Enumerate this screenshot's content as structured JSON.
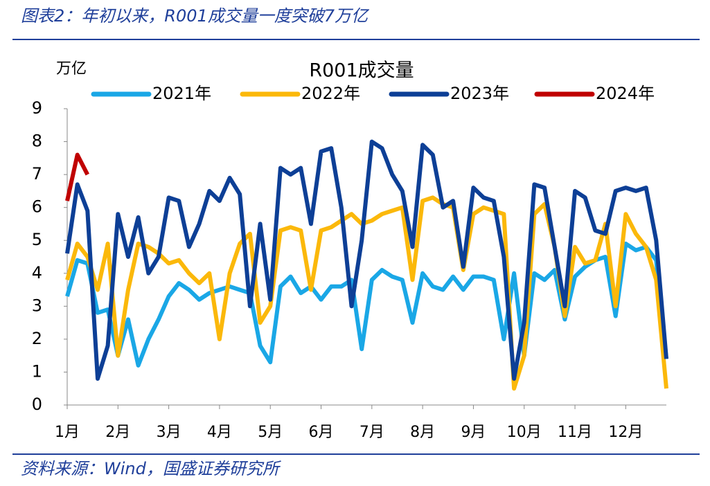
{
  "header": {
    "title": "图表2：年初以来，R001成交量一度突破7万亿"
  },
  "footer": {
    "source": "资料来源：Wind，国盛证券研究所"
  },
  "chart_data": {
    "type": "line",
    "title": "R001成交量",
    "y_label": "万亿",
    "categories": [
      "1月",
      null,
      null,
      null,
      null,
      "2月",
      null,
      null,
      null,
      null,
      "3月",
      null,
      null,
      null,
      null,
      "4月",
      null,
      null,
      null,
      null,
      "5月",
      null,
      null,
      null,
      null,
      "6月",
      null,
      null,
      null,
      null,
      "7月",
      null,
      null,
      null,
      null,
      "8月",
      null,
      null,
      null,
      null,
      "9月",
      null,
      null,
      null,
      null,
      "10月",
      null,
      null,
      null,
      null,
      "11月",
      null,
      null,
      null,
      null,
      "12月",
      null,
      null,
      null,
      null
    ],
    "ylim": [
      0,
      9
    ],
    "yticks": [
      0,
      1,
      2,
      3,
      4,
      5,
      6,
      7,
      8,
      9
    ],
    "grid": false,
    "legend": "top",
    "series": [
      {
        "name": "2021年",
        "color": "#1aa7e6",
        "values": [
          3.3,
          4.4,
          4.3,
          2.8,
          2.9,
          1.5,
          2.6,
          1.2,
          2.0,
          2.6,
          3.3,
          3.7,
          3.5,
          3.2,
          3.4,
          3.5,
          3.6,
          3.5,
          3.4,
          1.8,
          1.3,
          3.6,
          3.9,
          3.4,
          3.6,
          3.2,
          3.6,
          3.6,
          3.8,
          1.7,
          3.8,
          4.1,
          3.9,
          3.8,
          2.5,
          4.0,
          3.6,
          3.5,
          3.9,
          3.5,
          3.9,
          3.9,
          3.8,
          2.0,
          4.0,
          1.5,
          4.0,
          3.8,
          4.1,
          2.6,
          3.9,
          4.2,
          4.4,
          4.5,
          2.7,
          4.9,
          4.7,
          4.8,
          4.4,
          1.4
        ]
      },
      {
        "name": "2022年",
        "color": "#fbb80a",
        "values": [
          3.8,
          4.9,
          4.5,
          3.5,
          4.9,
          1.5,
          3.5,
          4.9,
          4.8,
          4.6,
          4.3,
          4.4,
          4.0,
          3.7,
          4.0,
          2.0,
          4.0,
          4.9,
          5.2,
          2.5,
          3.0,
          5.3,
          5.4,
          5.3,
          3.5,
          5.3,
          5.4,
          5.6,
          5.8,
          5.5,
          5.6,
          5.8,
          5.9,
          6.0,
          3.8,
          6.2,
          6.3,
          6.1,
          6.0,
          4.1,
          5.8,
          6.0,
          5.9,
          5.8,
          0.5,
          1.5,
          5.8,
          6.1,
          4.8,
          2.7,
          4.8,
          4.3,
          4.4,
          5.5,
          3.0,
          5.8,
          5.2,
          4.8,
          3.8,
          0.5
        ]
      },
      {
        "name": "2023年",
        "color": "#0d3f96",
        "values": [
          4.6,
          6.7,
          5.9,
          0.8,
          1.8,
          5.8,
          4.5,
          5.7,
          4.0,
          4.5,
          6.3,
          6.2,
          4.8,
          5.5,
          6.5,
          6.2,
          6.9,
          6.4,
          3.0,
          5.5,
          3.2,
          7.2,
          7.0,
          7.2,
          5.5,
          7.7,
          7.8,
          6.0,
          3.0,
          5.0,
          8.0,
          7.8,
          7.0,
          6.5,
          4.8,
          7.9,
          7.6,
          6.0,
          6.2,
          4.2,
          6.6,
          6.3,
          6.2,
          4.5,
          0.8,
          2.5,
          6.7,
          6.6,
          4.8,
          3.0,
          6.5,
          6.3,
          5.3,
          5.2,
          6.5,
          6.6,
          6.5,
          6.6,
          5.0,
          1.4
        ]
      },
      {
        "name": "2024年",
        "color": "#c00000",
        "values": [
          6.2,
          7.6,
          7.0,
          null,
          null,
          null,
          null,
          null,
          null,
          null,
          null,
          null,
          null,
          null,
          null,
          null,
          null,
          null,
          null,
          null,
          null,
          null,
          null,
          null,
          null,
          null,
          null,
          null,
          null,
          null,
          null,
          null,
          null,
          null,
          null,
          null,
          null,
          null,
          null,
          null,
          null,
          null,
          null,
          null,
          null,
          null,
          null,
          null,
          null,
          null,
          null,
          null,
          null,
          null,
          null,
          null,
          null,
          null,
          null,
          null
        ]
      }
    ]
  }
}
